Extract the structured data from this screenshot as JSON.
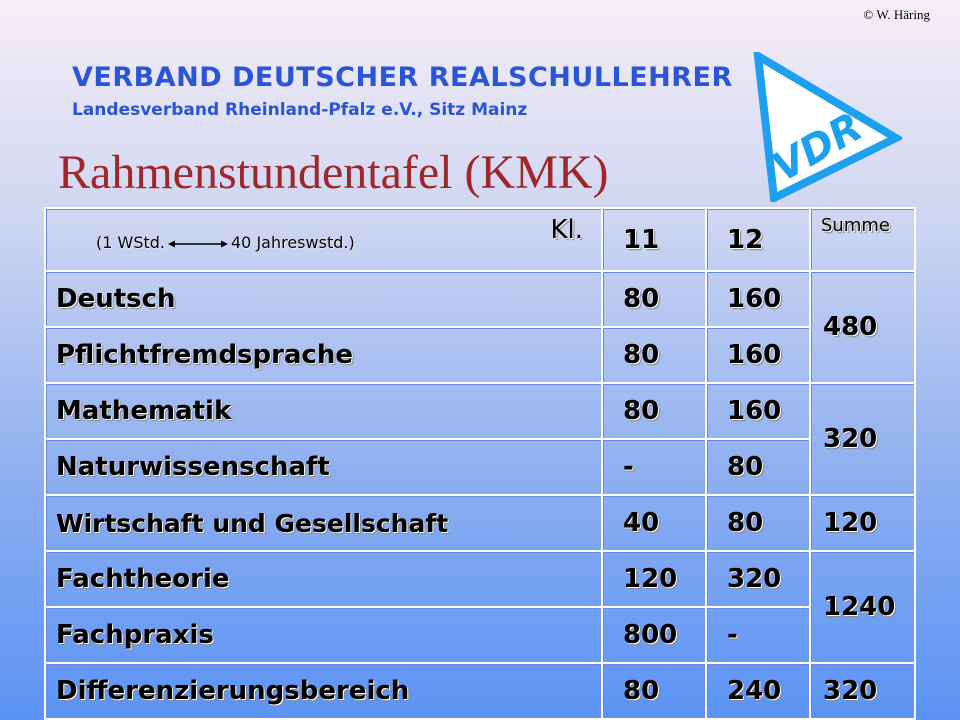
{
  "copyright": "© W. Häring",
  "header": {
    "org_name": "VERBAND DEUTSCHER REALSCHULLEHRER",
    "org_sub": "Landesverband Rheinland-Pfalz e.V., Sitz Mainz",
    "title": "Rahmenstundentafel (KMK)",
    "logo_text": "VDR",
    "logo_color": "#1ea0f0"
  },
  "table": {
    "conversion_left": "(1 WStd.",
    "conversion_right": "40 Jahreswstd.)",
    "class_label": "Kl.",
    "grades": [
      "11",
      "12"
    ],
    "sum_label": "Summe",
    "rows": [
      {
        "subject": "Deutsch",
        "g11": "80",
        "g12": "160"
      },
      {
        "subject": "Pflichtfremdsprache",
        "g11": "80",
        "g12": "160"
      },
      {
        "subject": "Mathematik",
        "g11": "80",
        "g12": "160"
      },
      {
        "subject": "Naturwissenschaft",
        "g11": "-",
        "g12": "80"
      },
      {
        "subject": "Wirtschaft und Gesellschaft",
        "g11": "40",
        "g12": "80"
      },
      {
        "subject": "Fachtheorie",
        "g11": "120",
        "g12": "320"
      },
      {
        "subject": "Fachpraxis",
        "g11": "800",
        "g12": "-"
      },
      {
        "subject": "Differenzierungsbereich",
        "g11": "80",
        "g12": "240"
      }
    ],
    "sums": [
      "480",
      "320",
      "120",
      "1240",
      "320"
    ]
  }
}
